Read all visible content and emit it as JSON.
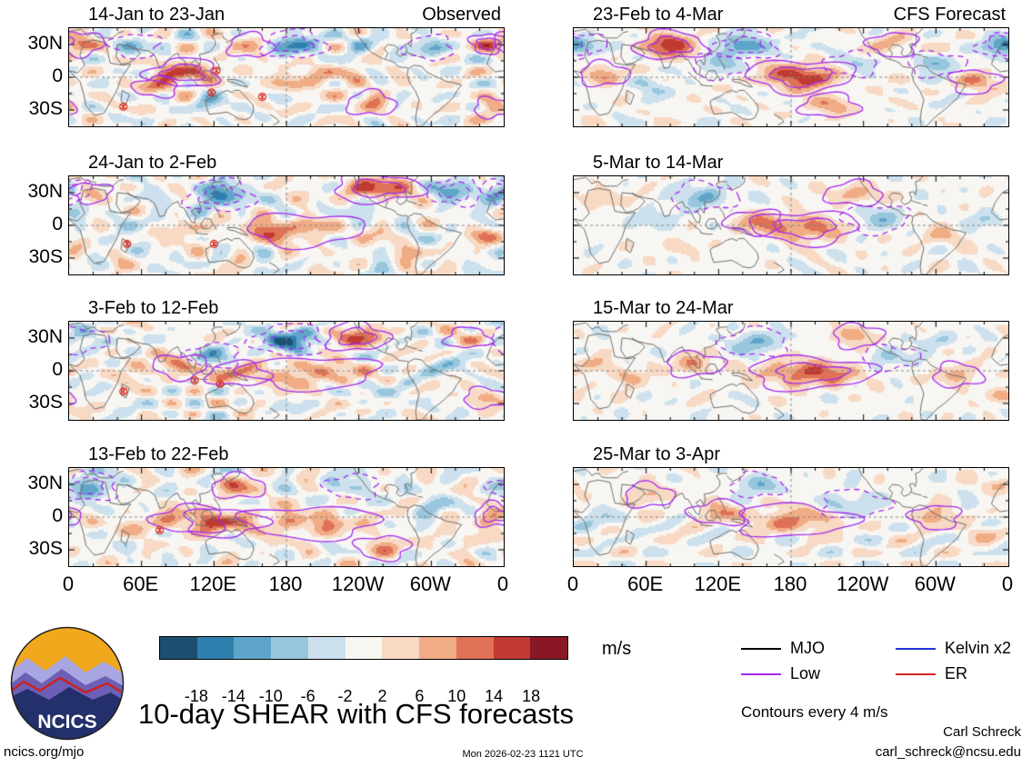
{
  "title": "10-day SHEAR with CFS forecasts",
  "logo": {
    "text": "NCICS"
  },
  "footer": {
    "site": "ncics.org/mjo",
    "timestamp": "Mon 2026-02-23 1121 UTC",
    "author": "Carl Schreck",
    "email": "carl_schreck@ncsu.edu"
  },
  "chart_data": {
    "type": "heatmap",
    "title": "10-day SHEAR with CFS forecasts",
    "units": "m/s",
    "contour_note": "Contours every 4 m/s",
    "x_axis": {
      "ticks": [
        "0",
        "60E",
        "120E",
        "180",
        "120W",
        "60W",
        "0"
      ],
      "range_deg": [
        0,
        360
      ]
    },
    "y_axis": {
      "ticks": [
        "30N",
        "0",
        "30S"
      ],
      "range_deg": [
        45,
        -45
      ]
    },
    "color_levels": [
      -18,
      -14,
      -10,
      -6,
      -2,
      2,
      6,
      10,
      14,
      18
    ],
    "colors": [
      "#1d4f72",
      "#2e7fae",
      "#5fa5c9",
      "#97c6dd",
      "#cce1ed",
      "#f8f6f2",
      "#f7d9c4",
      "#f0ac85",
      "#de7156",
      "#c03a31",
      "#8a1724"
    ],
    "legend": [
      {
        "label": "MJO",
        "color": "#000000"
      },
      {
        "label": "Low",
        "color": "#a428f0"
      },
      {
        "label": "Kelvin x2",
        "color": "#2433d8"
      },
      {
        "label": "ER",
        "color": "#d42b20"
      }
    ],
    "panels": [
      {
        "title": "14-Jan to 23-Jan",
        "tag": "Observed",
        "seed": 11,
        "noise": 1.0,
        "anomalies": [
          [
            10,
            31,
            11,
            10,
            6
          ],
          [
            55,
            29,
            -8,
            11,
            6
          ],
          [
            95,
            4,
            15,
            16,
            7
          ],
          [
            72,
            -9,
            9,
            10,
            5
          ],
          [
            118,
            -22,
            -7,
            12,
            6
          ],
          [
            150,
            29,
            9,
            10,
            6
          ],
          [
            186,
            30,
            -14,
            14,
            7
          ],
          [
            205,
            -1,
            7,
            28,
            8
          ],
          [
            242,
            30,
            -7,
            10,
            6
          ],
          [
            250,
            -24,
            8,
            11,
            6
          ],
          [
            298,
            27,
            -9,
            11,
            6
          ],
          [
            347,
            31,
            12,
            8,
            5
          ],
          [
            350,
            -28,
            11,
            8,
            5
          ]
        ],
        "storms": [
          [
            122,
            6
          ],
          [
            118,
            -14
          ],
          [
            160,
            -18
          ],
          [
            45,
            -27
          ]
        ]
      },
      {
        "title": "24-Jan to 2-Feb",
        "tag": "",
        "seed": 22,
        "noise": 1.0,
        "anomalies": [
          [
            18,
            30,
            9,
            9,
            5
          ],
          [
            0,
            32,
            -12,
            10,
            6
          ],
          [
            60,
            4,
            -6,
            10,
            6
          ],
          [
            125,
            27,
            -15,
            15,
            8
          ],
          [
            98,
            -3,
            6,
            12,
            6
          ],
          [
            160,
            -3,
            7,
            16,
            7
          ],
          [
            195,
            -4,
            8,
            26,
            8
          ],
          [
            232,
            12,
            -7,
            12,
            6
          ],
          [
            255,
            34,
            14,
            20,
            7
          ],
          [
            320,
            31,
            -13,
            12,
            7
          ],
          [
            340,
            -10,
            6,
            10,
            5
          ],
          [
            285,
            -25,
            7,
            10,
            5
          ]
        ],
        "storms": [
          [
            48,
            -17
          ],
          [
            120,
            -17
          ]
        ]
      },
      {
        "title": "3-Feb to 12-Feb",
        "tag": "",
        "seed": 33,
        "noise": 1.0,
        "anomalies": [
          [
            10,
            28,
            -8,
            12,
            6
          ],
          [
            55,
            0,
            6,
            12,
            6
          ],
          [
            92,
            4,
            10,
            12,
            6
          ],
          [
            120,
            14,
            -9,
            12,
            6
          ],
          [
            140,
            -3,
            9,
            14,
            6
          ],
          [
            182,
            28,
            -16,
            16,
            8
          ],
          [
            238,
            31,
            13,
            14,
            7
          ],
          [
            200,
            -2,
            9,
            30,
            8
          ],
          [
            260,
            -18,
            -6,
            12,
            6
          ],
          [
            310,
            5,
            -7,
            12,
            6
          ],
          [
            345,
            -25,
            8,
            10,
            5
          ],
          [
            330,
            30,
            8,
            10,
            5
          ]
        ],
        "storms": [
          [
            45,
            -19
          ],
          [
            104,
            -9
          ],
          [
            125,
            -12
          ]
        ]
      },
      {
        "title": "13-Feb to 22-Feb",
        "tag": "",
        "seed": 44,
        "noise": 1.0,
        "anomalies": [
          [
            15,
            28,
            -13,
            14,
            7
          ],
          [
            60,
            -8,
            7,
            11,
            6
          ],
          [
            100,
            -2,
            9,
            16,
            7
          ],
          [
            140,
            28,
            10,
            12,
            6
          ],
          [
            128,
            -5,
            10,
            18,
            7
          ],
          [
            200,
            -5,
            9,
            30,
            8
          ],
          [
            235,
            28,
            -8,
            12,
            6
          ],
          [
            260,
            -28,
            8,
            12,
            6
          ],
          [
            300,
            10,
            -7,
            12,
            6
          ],
          [
            352,
            2,
            12,
            9,
            6
          ],
          [
            330,
            -20,
            7,
            10,
            5
          ]
        ],
        "storms": [
          [
            75,
            -12
          ]
        ]
      },
      {
        "title": "23-Feb to 4-Mar",
        "tag": "CFS Forecast",
        "seed": 55,
        "noise": 0.65,
        "anomalies": [
          [
            5,
            30,
            -11,
            12,
            6
          ],
          [
            25,
            3,
            9,
            11,
            6
          ],
          [
            80,
            29,
            16,
            16,
            7
          ],
          [
            60,
            -10,
            -6,
            11,
            6
          ],
          [
            120,
            10,
            -8,
            12,
            6
          ],
          [
            143,
            29,
            -15,
            14,
            7
          ],
          [
            188,
            1,
            16,
            24,
            8
          ],
          [
            230,
            12,
            -8,
            12,
            6
          ],
          [
            212,
            -26,
            9,
            13,
            6
          ],
          [
            265,
            30,
            9,
            11,
            6
          ],
          [
            300,
            12,
            -9,
            13,
            6
          ],
          [
            332,
            -4,
            11,
            11,
            6
          ],
          [
            352,
            28,
            -8,
            10,
            5
          ]
        ],
        "storms": []
      },
      {
        "title": "5-Mar to 14-Mar",
        "tag": "",
        "seed": 66,
        "noise": 0.65,
        "anomalies": [
          [
            20,
            25,
            7,
            11,
            6
          ],
          [
            70,
            5,
            -6,
            12,
            6
          ],
          [
            108,
            26,
            -10,
            15,
            7
          ],
          [
            150,
            3,
            8,
            13,
            6
          ],
          [
            192,
            -2,
            12,
            24,
            8
          ],
          [
            250,
            6,
            -8,
            15,
            7
          ],
          [
            232,
            29,
            9,
            13,
            6
          ],
          [
            305,
            -10,
            7,
            11,
            6
          ],
          [
            340,
            5,
            -6,
            10,
            5
          ],
          [
            90,
            -20,
            6,
            10,
            5
          ]
        ],
        "storms": []
      },
      {
        "title": "15-Mar to 24-Mar",
        "tag": "",
        "seed": 77,
        "noise": 0.65,
        "anomalies": [
          [
            15,
            5,
            6,
            11,
            6
          ],
          [
            45,
            -6,
            7,
            11,
            6
          ],
          [
            100,
            6,
            9,
            13,
            6
          ],
          [
            150,
            26,
            -10,
            15,
            7
          ],
          [
            196,
            -2,
            14,
            28,
            8
          ],
          [
            262,
            12,
            -8,
            13,
            6
          ],
          [
            235,
            32,
            9,
            11,
            6
          ],
          [
            318,
            -4,
            9,
            11,
            6
          ],
          [
            300,
            28,
            -7,
            10,
            5
          ],
          [
            352,
            -22,
            7,
            10,
            5
          ]
        ],
        "storms": []
      },
      {
        "title": "25-Mar to 3-Apr",
        "tag": "",
        "seed": 88,
        "noise": 0.65,
        "anomalies": [
          [
            20,
            -4,
            -6,
            11,
            6
          ],
          [
            62,
            20,
            8,
            11,
            6
          ],
          [
            120,
            4,
            8,
            13,
            6
          ],
          [
            152,
            29,
            -9,
            12,
            6
          ],
          [
            182,
            -3,
            10,
            26,
            8
          ],
          [
            232,
            12,
            -8,
            15,
            7
          ],
          [
            300,
            0,
            10,
            11,
            6
          ],
          [
            340,
            -15,
            6,
            10,
            5
          ],
          [
            352,
            30,
            7,
            9,
            5
          ]
        ],
        "storms": []
      }
    ]
  }
}
